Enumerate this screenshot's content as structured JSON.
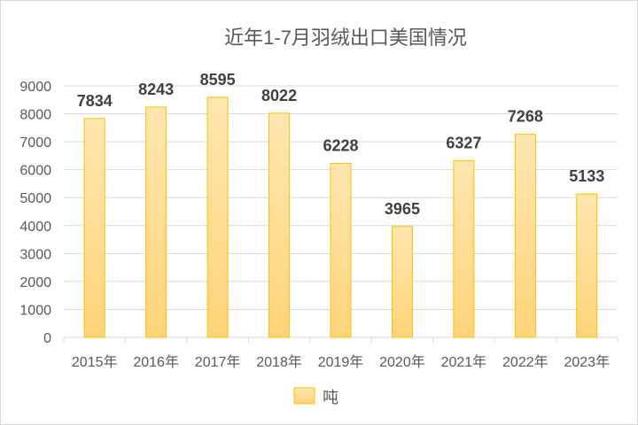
{
  "chart_data": {
    "type": "bar",
    "title": "近年1-7月羽绒出口美国情况",
    "categories": [
      "2015年",
      "2016年",
      "2017年",
      "2018年",
      "2019年",
      "2020年",
      "2021年",
      "2022年",
      "2023年"
    ],
    "series": [
      {
        "name": "吨",
        "values": [
          7834,
          8243,
          8595,
          8022,
          6228,
          3965,
          6327,
          7268,
          5133
        ]
      }
    ],
    "ylim": [
      0,
      9000
    ],
    "yticks": [
      0,
      1000,
      2000,
      3000,
      4000,
      5000,
      6000,
      7000,
      8000,
      9000
    ],
    "xlabel": "",
    "ylabel": "",
    "grid": true,
    "legend": "bottom",
    "data_labels": true,
    "colors": {
      "bar_fill_top": "#FFE6B0",
      "bar_fill_bottom": "#FFD47A",
      "bar_border": "#FFC000",
      "grid": "#d9d9d9"
    }
  }
}
